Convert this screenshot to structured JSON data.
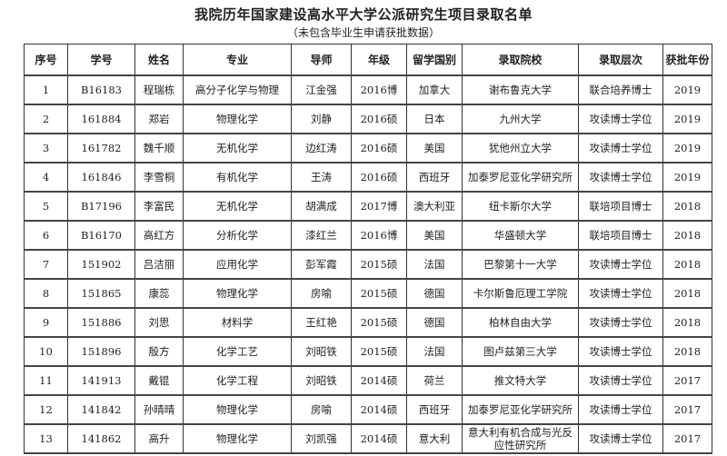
{
  "title": "我院历年国家建设高水平大学公派研究生项目录取名单",
  "subtitle": "（未包含毕业生申请获批数据）",
  "columns": [
    "序号",
    "学号",
    "姓名",
    "专业",
    "导师",
    "年级",
    "留学国别",
    "录取院校",
    "录取层次",
    "获批年份"
  ],
  "rows": [
    [
      "1",
      "B16183",
      "程瑞栋",
      "高分子化学与物理",
      "江金强",
      "2016博",
      "加拿大",
      "谢布鲁克大学",
      "联合培养博士",
      "2019"
    ],
    [
      "2",
      "161884",
      "郑岩",
      "物理化学",
      "刘静",
      "2016硕",
      "日本",
      "九州大学",
      "攻读博士学位",
      "2019"
    ],
    [
      "3",
      "161782",
      "魏千顺",
      "无机化学",
      "边红涛",
      "2016硕",
      "美国",
      "犹他州立大学",
      "攻读博士学位",
      "2019"
    ],
    [
      "4",
      "161846",
      "李雪桐",
      "有机化学",
      "王涛",
      "2016硕",
      "西班牙",
      "加泰罗尼亚化学研究所",
      "攻读博士学位",
      "2019"
    ],
    [
      "5",
      "B17196",
      "李富民",
      "无机化学",
      "胡满成",
      "2017博",
      "澳大利亚",
      "纽卡斯尔大学",
      "联培项目博士",
      "2018"
    ],
    [
      "6",
      "B16170",
      "高红方",
      "分析化学",
      "漆红兰",
      "2016博",
      "美国",
      "华盛顿大学",
      "联培项目博士",
      "2018"
    ],
    [
      "7",
      "151902",
      "吕洁丽",
      "应用化学",
      "彭军霞",
      "2015硕",
      "法国",
      "巴黎第十一大学",
      "攻读博士学位",
      "2018"
    ],
    [
      "8",
      "151865",
      "康蕊",
      "物理化学",
      "房喻",
      "2015硕",
      "德国",
      "卡尔斯鲁厄理工学院",
      "攻读博士学位",
      "2018"
    ],
    [
      "9",
      "151886",
      "刘思",
      "材料学",
      "王红艳",
      "2015硕",
      "德国",
      "柏林自由大学",
      "攻读博士学位",
      "2018"
    ],
    [
      "10",
      "151896",
      "殷方",
      "化学工艺",
      "刘昭铁",
      "2015硕",
      "法国",
      "图卢兹第三大学",
      "攻读博士学位",
      "2018"
    ],
    [
      "11",
      "141913",
      "戴锟",
      "化学工程",
      "刘昭铁",
      "2014硕",
      "荷兰",
      "推文特大学",
      "攻读博士学位",
      "2017"
    ],
    [
      "12",
      "141842",
      "孙晴晴",
      "物理化学",
      "房喻",
      "2014硕",
      "西班牙",
      "加泰罗尼亚化学研究所",
      "攻读博士学位",
      "2017"
    ],
    [
      "13",
      "141862",
      "高升",
      "物理化学",
      "刘凯强",
      "2014硕",
      "意大利",
      "意大利有机合成与光反应性研究所",
      "攻读博士学位",
      "2017"
    ]
  ]
}
